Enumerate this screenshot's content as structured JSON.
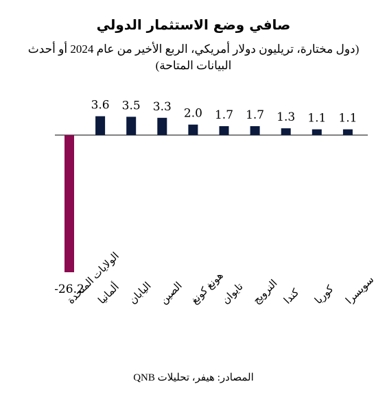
{
  "chart_data": {
    "type": "bar",
    "title": "صافي وضع الاستثمار الدولي",
    "subtitle": "(دول مختارة، تريليون دولار أمريكي، الربع الأخير من عام 2024 أو أحدث البيانات المتاحة)",
    "source": "المصادر: هيفر، تحليلات QNB",
    "categories": [
      "الولايات المتحدة",
      "ألمانيا",
      "اليابان",
      "الصين",
      "هونغ كونغ",
      "تايوان",
      "النرويج",
      "كندا",
      "كوريا",
      "سويسرا"
    ],
    "values": [
      -26.2,
      3.6,
      3.5,
      3.3,
      2.0,
      1.7,
      1.7,
      1.3,
      1.1,
      1.1
    ],
    "value_labels": [
      "-26.2",
      "3.6",
      "3.5",
      "3.3",
      "2.0",
      "1.7",
      "1.7",
      "1.3",
      "1.1",
      "1.1"
    ],
    "colors": {
      "negative": "#8b0a50",
      "positive": "#0b1a3d"
    },
    "grid": false,
    "legend": "none"
  }
}
